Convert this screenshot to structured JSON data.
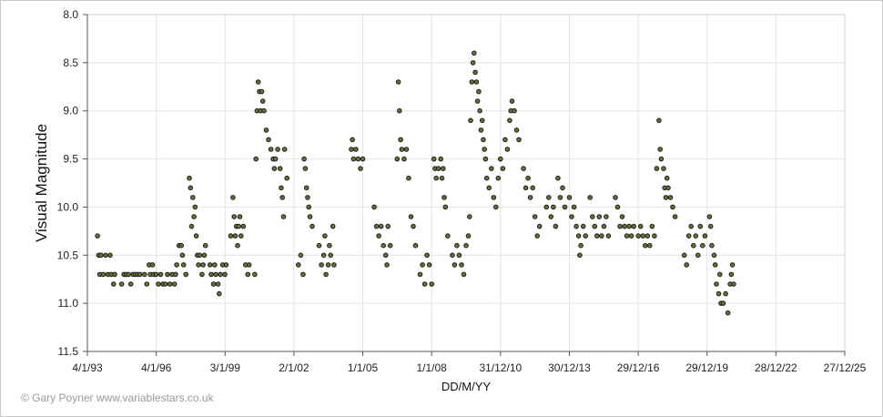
{
  "chart_data": {
    "type": "scatter",
    "title": "",
    "xlabel": "DD/M/YY",
    "ylabel": "Visual Magnitude",
    "x_tick_labels": [
      "4/1/93",
      "4/1/96",
      "3/1/99",
      "2/1/02",
      "1/1/05",
      "1/1/08",
      "31/12/10",
      "30/12/13",
      "29/12/16",
      "29/12/19",
      "28/12/22",
      "27/12/25"
    ],
    "y_tick_labels": [
      "8.0",
      "8.5",
      "9.0",
      "9.5",
      "10.0",
      "10.5",
      "11.0",
      "11.5"
    ],
    "xlim": [
      1993.01,
      2025.99
    ],
    "ylim": [
      8.0,
      11.5
    ],
    "y_inverted": true,
    "grid": true,
    "marker_color": "#6e6e3c",
    "marker_edge_color": "#1e1e1e",
    "points": [
      [
        1993.45,
        10.3
      ],
      [
        1993.5,
        10.5
      ],
      [
        1993.55,
        10.7
      ],
      [
        1993.6,
        10.5
      ],
      [
        1993.7,
        10.7
      ],
      [
        1993.8,
        10.5
      ],
      [
        1993.9,
        10.7
      ],
      [
        1994.0,
        10.5
      ],
      [
        1994.05,
        10.7
      ],
      [
        1994.15,
        10.8
      ],
      [
        1994.2,
        10.7
      ],
      [
        1994.5,
        10.8
      ],
      [
        1994.6,
        10.7
      ],
      [
        1994.7,
        10.7
      ],
      [
        1994.8,
        10.7
      ],
      [
        1994.9,
        10.8
      ],
      [
        1995.0,
        10.7
      ],
      [
        1995.1,
        10.7
      ],
      [
        1995.2,
        10.7
      ],
      [
        1995.3,
        10.7
      ],
      [
        1995.5,
        10.7
      ],
      [
        1995.6,
        10.8
      ],
      [
        1995.7,
        10.6
      ],
      [
        1995.75,
        10.7
      ],
      [
        1995.85,
        10.6
      ],
      [
        1995.9,
        10.7
      ],
      [
        1996.0,
        10.7
      ],
      [
        1996.1,
        10.8
      ],
      [
        1996.2,
        10.7
      ],
      [
        1996.3,
        10.8
      ],
      [
        1996.4,
        10.8
      ],
      [
        1996.5,
        10.7
      ],
      [
        1996.6,
        10.8
      ],
      [
        1996.7,
        10.7
      ],
      [
        1996.8,
        10.8
      ],
      [
        1996.85,
        10.7
      ],
      [
        1996.9,
        10.6
      ],
      [
        1997.0,
        10.4
      ],
      [
        1997.1,
        10.4
      ],
      [
        1997.15,
        10.5
      ],
      [
        1997.2,
        10.6
      ],
      [
        1997.3,
        10.7
      ],
      [
        1997.45,
        9.7
      ],
      [
        1997.5,
        9.8
      ],
      [
        1997.55,
        10.2
      ],
      [
        1997.6,
        9.9
      ],
      [
        1997.65,
        10.1
      ],
      [
        1997.7,
        10.0
      ],
      [
        1997.75,
        10.3
      ],
      [
        1997.8,
        10.5
      ],
      [
        1997.85,
        10.6
      ],
      [
        1997.9,
        10.5
      ],
      [
        1998.0,
        10.7
      ],
      [
        1998.05,
        10.6
      ],
      [
        1998.1,
        10.5
      ],
      [
        1998.15,
        10.4
      ],
      [
        1998.35,
        10.6
      ],
      [
        1998.4,
        10.7
      ],
      [
        1998.5,
        10.8
      ],
      [
        1998.55,
        10.6
      ],
      [
        1998.6,
        10.7
      ],
      [
        1998.7,
        10.8
      ],
      [
        1998.75,
        10.9
      ],
      [
        1998.8,
        10.7
      ],
      [
        1998.9,
        10.6
      ],
      [
        1999.0,
        10.7
      ],
      [
        1999.05,
        10.6
      ],
      [
        1999.25,
        10.3
      ],
      [
        1999.35,
        9.9
      ],
      [
        1999.4,
        10.1
      ],
      [
        1999.45,
        10.3
      ],
      [
        1999.5,
        10.2
      ],
      [
        1999.55,
        10.4
      ],
      [
        1999.6,
        10.2
      ],
      [
        1999.65,
        10.1
      ],
      [
        1999.7,
        10.3
      ],
      [
        1999.8,
        10.2
      ],
      [
        1999.9,
        10.6
      ],
      [
        2000.0,
        10.7
      ],
      [
        2000.05,
        10.6
      ],
      [
        2000.3,
        10.7
      ],
      [
        2000.35,
        9.5
      ],
      [
        2000.4,
        9.0
      ],
      [
        2000.45,
        8.7
      ],
      [
        2000.5,
        8.8
      ],
      [
        2000.55,
        9.0
      ],
      [
        2000.6,
        8.8
      ],
      [
        2000.65,
        8.9
      ],
      [
        2000.7,
        9.0
      ],
      [
        2000.8,
        9.2
      ],
      [
        2000.9,
        9.3
      ],
      [
        2001.0,
        9.4
      ],
      [
        2001.1,
        9.5
      ],
      [
        2001.15,
        9.6
      ],
      [
        2001.2,
        9.5
      ],
      [
        2001.3,
        9.4
      ],
      [
        2001.4,
        9.6
      ],
      [
        2001.45,
        9.8
      ],
      [
        2001.5,
        9.9
      ],
      [
        2001.55,
        10.1
      ],
      [
        2001.6,
        9.4
      ],
      [
        2001.7,
        9.7
      ],
      [
        2002.2,
        10.6
      ],
      [
        2002.3,
        10.5
      ],
      [
        2002.4,
        10.7
      ],
      [
        2002.45,
        9.5
      ],
      [
        2002.5,
        9.6
      ],
      [
        2002.55,
        9.8
      ],
      [
        2002.6,
        9.9
      ],
      [
        2002.65,
        10.0
      ],
      [
        2002.7,
        10.1
      ],
      [
        2002.8,
        10.2
      ],
      [
        2003.1,
        10.4
      ],
      [
        2003.2,
        10.6
      ],
      [
        2003.3,
        10.5
      ],
      [
        2003.35,
        10.3
      ],
      [
        2003.4,
        10.7
      ],
      [
        2003.5,
        10.6
      ],
      [
        2003.55,
        10.4
      ],
      [
        2003.6,
        10.5
      ],
      [
        2003.7,
        10.2
      ],
      [
        2003.75,
        10.6
      ],
      [
        2004.5,
        9.4
      ],
      [
        2004.55,
        9.3
      ],
      [
        2004.6,
        9.5
      ],
      [
        2004.7,
        9.4
      ],
      [
        2004.8,
        9.5
      ],
      [
        2004.9,
        9.6
      ],
      [
        2005.0,
        9.5
      ],
      [
        2005.5,
        10.0
      ],
      [
        2005.6,
        10.2
      ],
      [
        2005.7,
        10.3
      ],
      [
        2005.8,
        10.2
      ],
      [
        2005.9,
        10.4
      ],
      [
        2006.0,
        10.5
      ],
      [
        2006.05,
        10.6
      ],
      [
        2006.1,
        10.2
      ],
      [
        2006.2,
        10.4
      ],
      [
        2006.5,
        9.5
      ],
      [
        2006.55,
        8.7
      ],
      [
        2006.6,
        9.0
      ],
      [
        2006.65,
        9.3
      ],
      [
        2006.7,
        9.4
      ],
      [
        2006.8,
        9.5
      ],
      [
        2006.9,
        9.4
      ],
      [
        2007.0,
        9.7
      ],
      [
        2007.1,
        10.1
      ],
      [
        2007.2,
        10.2
      ],
      [
        2007.3,
        10.4
      ],
      [
        2007.5,
        10.7
      ],
      [
        2007.6,
        10.6
      ],
      [
        2007.7,
        10.8
      ],
      [
        2007.8,
        10.5
      ],
      [
        2007.9,
        10.6
      ],
      [
        2008.0,
        10.8
      ],
      [
        2008.1,
        9.5
      ],
      [
        2008.15,
        9.6
      ],
      [
        2008.2,
        9.7
      ],
      [
        2008.3,
        9.6
      ],
      [
        2008.4,
        9.5
      ],
      [
        2008.45,
        9.7
      ],
      [
        2008.5,
        9.6
      ],
      [
        2008.55,
        9.9
      ],
      [
        2008.6,
        10.0
      ],
      [
        2008.7,
        10.3
      ],
      [
        2008.9,
        10.5
      ],
      [
        2009.0,
        10.6
      ],
      [
        2009.1,
        10.4
      ],
      [
        2009.2,
        10.5
      ],
      [
        2009.3,
        10.6
      ],
      [
        2009.4,
        10.7
      ],
      [
        2009.5,
        10.4
      ],
      [
        2009.6,
        10.3
      ],
      [
        2009.65,
        10.1
      ],
      [
        2009.7,
        9.1
      ],
      [
        2009.75,
        8.7
      ],
      [
        2009.8,
        8.5
      ],
      [
        2009.85,
        8.4
      ],
      [
        2009.9,
        8.6
      ],
      [
        2009.95,
        8.7
      ],
      [
        2010.0,
        8.9
      ],
      [
        2010.05,
        8.8
      ],
      [
        2010.1,
        9.0
      ],
      [
        2010.15,
        9.2
      ],
      [
        2010.2,
        9.1
      ],
      [
        2010.25,
        9.3
      ],
      [
        2010.3,
        9.4
      ],
      [
        2010.35,
        9.5
      ],
      [
        2010.4,
        9.7
      ],
      [
        2010.5,
        9.8
      ],
      [
        2010.6,
        9.6
      ],
      [
        2010.7,
        9.9
      ],
      [
        2010.8,
        10.0
      ],
      [
        2010.9,
        9.7
      ],
      [
        2011.0,
        9.5
      ],
      [
        2011.1,
        9.6
      ],
      [
        2011.2,
        9.3
      ],
      [
        2011.3,
        9.4
      ],
      [
        2011.4,
        9.1
      ],
      [
        2011.45,
        9.0
      ],
      [
        2011.5,
        8.9
      ],
      [
        2011.6,
        9.0
      ],
      [
        2011.7,
        9.2
      ],
      [
        2011.8,
        9.3
      ],
      [
        2012.0,
        9.6
      ],
      [
        2012.1,
        9.8
      ],
      [
        2012.2,
        9.7
      ],
      [
        2012.3,
        9.9
      ],
      [
        2012.4,
        9.8
      ],
      [
        2012.5,
        10.1
      ],
      [
        2012.6,
        10.3
      ],
      [
        2012.7,
        10.2
      ],
      [
        2013.0,
        10.0
      ],
      [
        2013.1,
        9.9
      ],
      [
        2013.2,
        10.1
      ],
      [
        2013.3,
        10.0
      ],
      [
        2013.4,
        10.2
      ],
      [
        2013.5,
        9.7
      ],
      [
        2013.6,
        9.9
      ],
      [
        2013.7,
        9.8
      ],
      [
        2013.8,
        10.0
      ],
      [
        2014.0,
        9.9
      ],
      [
        2014.1,
        10.1
      ],
      [
        2014.2,
        10.0
      ],
      [
        2014.3,
        10.2
      ],
      [
        2014.4,
        10.3
      ],
      [
        2014.45,
        10.5
      ],
      [
        2014.5,
        10.4
      ],
      [
        2014.6,
        10.2
      ],
      [
        2014.7,
        10.3
      ],
      [
        2014.9,
        9.9
      ],
      [
        2015.0,
        10.1
      ],
      [
        2015.1,
        10.2
      ],
      [
        2015.2,
        10.3
      ],
      [
        2015.3,
        10.1
      ],
      [
        2015.4,
        10.3
      ],
      [
        2015.5,
        10.2
      ],
      [
        2015.6,
        10.1
      ],
      [
        2015.7,
        10.3
      ],
      [
        2016.0,
        9.9
      ],
      [
        2016.1,
        10.0
      ],
      [
        2016.2,
        10.2
      ],
      [
        2016.3,
        10.1
      ],
      [
        2016.4,
        10.2
      ],
      [
        2016.5,
        10.3
      ],
      [
        2016.6,
        10.2
      ],
      [
        2016.7,
        10.3
      ],
      [
        2016.8,
        10.2
      ],
      [
        2017.0,
        10.3
      ],
      [
        2017.1,
        10.2
      ],
      [
        2017.2,
        10.3
      ],
      [
        2017.3,
        10.4
      ],
      [
        2017.4,
        10.3
      ],
      [
        2017.5,
        10.4
      ],
      [
        2017.6,
        10.2
      ],
      [
        2017.7,
        10.3
      ],
      [
        2017.8,
        9.6
      ],
      [
        2017.9,
        9.1
      ],
      [
        2017.95,
        9.4
      ],
      [
        2018.0,
        9.5
      ],
      [
        2018.1,
        9.6
      ],
      [
        2018.15,
        9.8
      ],
      [
        2018.2,
        9.9
      ],
      [
        2018.25,
        9.7
      ],
      [
        2018.3,
        9.8
      ],
      [
        2018.4,
        9.9
      ],
      [
        2018.5,
        10.0
      ],
      [
        2018.6,
        10.1
      ],
      [
        2019.0,
        10.5
      ],
      [
        2019.1,
        10.6
      ],
      [
        2019.2,
        10.3
      ],
      [
        2019.3,
        10.2
      ],
      [
        2019.4,
        10.4
      ],
      [
        2019.5,
        10.3
      ],
      [
        2019.6,
        10.5
      ],
      [
        2019.7,
        10.2
      ],
      [
        2019.8,
        10.4
      ],
      [
        2019.9,
        10.3
      ],
      [
        2020.1,
        10.1
      ],
      [
        2020.15,
        10.2
      ],
      [
        2020.2,
        10.4
      ],
      [
        2020.3,
        10.5
      ],
      [
        2020.35,
        10.6
      ],
      [
        2020.4,
        10.8
      ],
      [
        2020.5,
        10.9
      ],
      [
        2020.55,
        10.7
      ],
      [
        2020.6,
        11.0
      ],
      [
        2020.7,
        11.0
      ],
      [
        2020.8,
        10.9
      ],
      [
        2020.9,
        11.1
      ],
      [
        2021.0,
        10.8
      ],
      [
        2021.05,
        10.7
      ],
      [
        2021.1,
        10.6
      ],
      [
        2021.15,
        10.8
      ]
    ]
  },
  "credit": "© Gary Poyner  www.variablestars.co.uk"
}
